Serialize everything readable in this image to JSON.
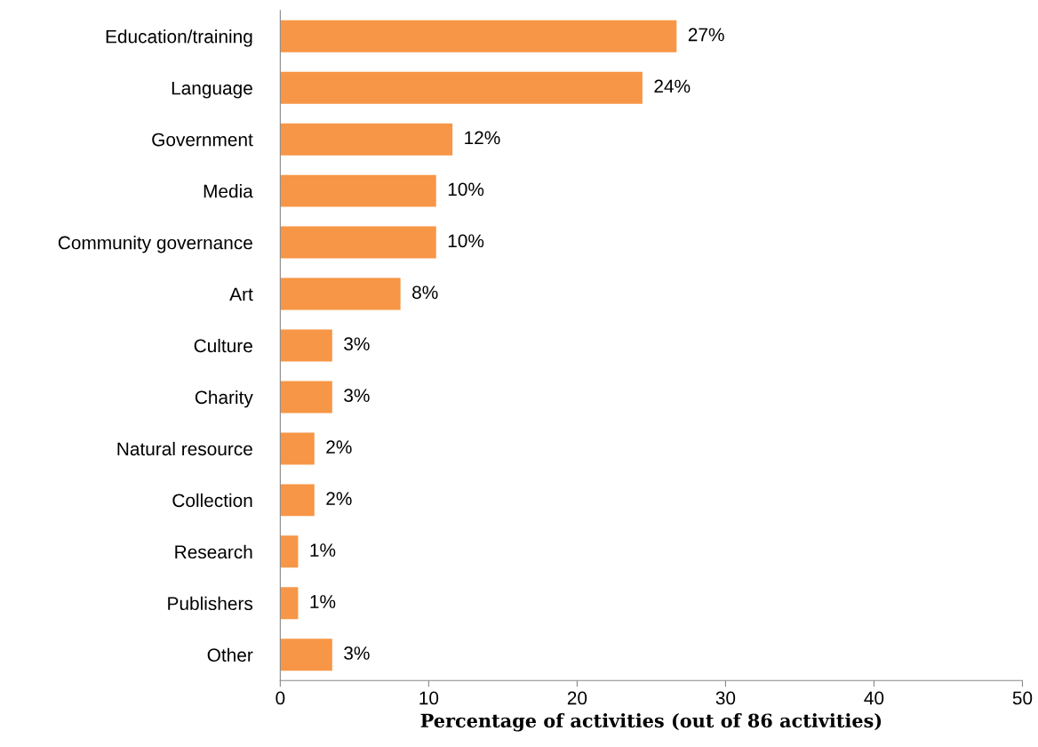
{
  "chart_data": {
    "type": "bar",
    "orientation": "horizontal",
    "xlabel": "Percentage of activities (out of 86 activities)",
    "categories": [
      "Education/training",
      "Language",
      "Government",
      "Media",
      "Community governance",
      "Art",
      "Culture",
      "Charity",
      "Natural resource",
      "Collection",
      "Research",
      "Publishers",
      "Other"
    ],
    "values": [
      26.7,
      24.4,
      11.6,
      10.5,
      10.5,
      8.1,
      3.5,
      3.5,
      2.3,
      2.3,
      1.2,
      1.2,
      3.5
    ],
    "value_labels": [
      "27%",
      "24%",
      "12%",
      "10%",
      "10%",
      "8%",
      "3%",
      "3%",
      "2%",
      "2%",
      "1%",
      "1%",
      "3%"
    ],
    "color": "#f79646",
    "xlim": [
      0,
      50
    ],
    "xticks": [
      0,
      10,
      20,
      30,
      40,
      50
    ],
    "grid": false,
    "legend": false
  }
}
